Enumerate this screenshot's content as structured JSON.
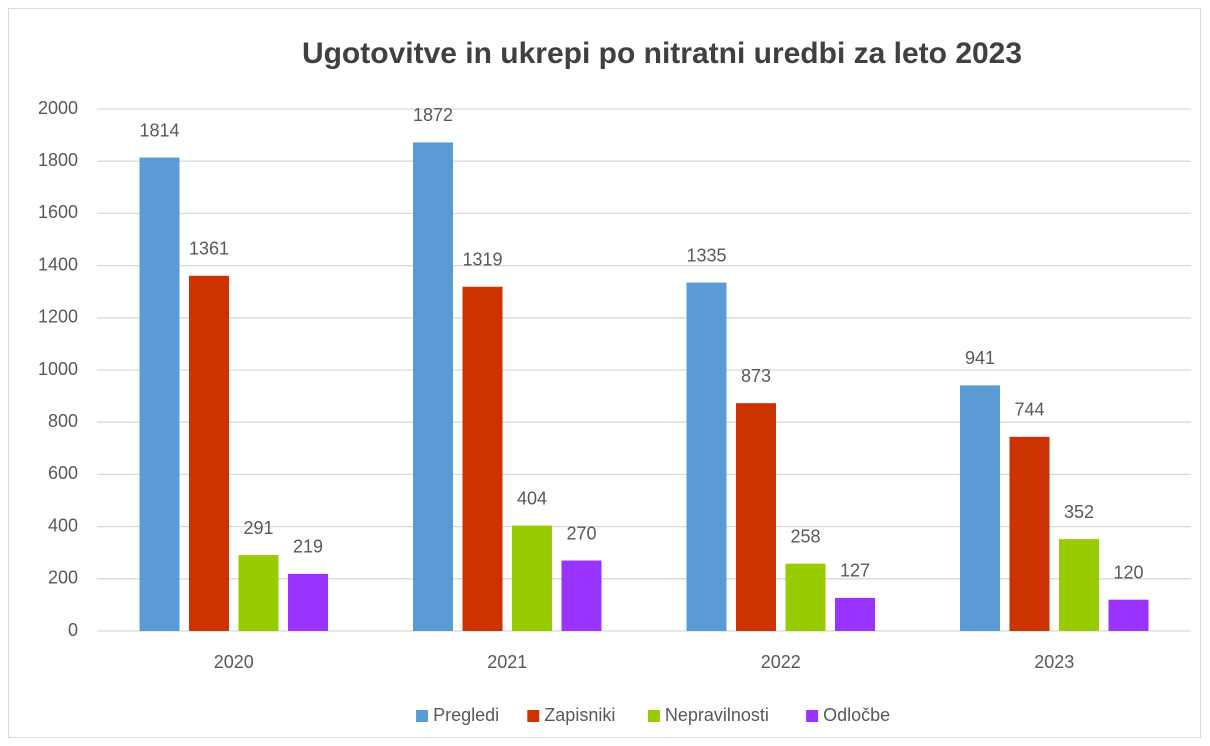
{
  "chart_data": {
    "type": "bar",
    "title": "Ugotovitve in ukrepi po nitratni uredbi za leto 2023",
    "categories": [
      "2020",
      "2021",
      "2022",
      "2023"
    ],
    "series": [
      {
        "name": "Pregledi",
        "color": "#5b9bd5",
        "values": [
          1814,
          1872,
          1335,
          941
        ]
      },
      {
        "name": "Zapisniki",
        "color": "#cc3300",
        "values": [
          1361,
          1319,
          873,
          744
        ]
      },
      {
        "name": "Nepravilnosti",
        "color": "#99cc00",
        "values": [
          291,
          404,
          258,
          352
        ]
      },
      {
        "name": "Odločbe",
        "color": "#9933ff",
        "values": [
          219,
          270,
          127,
          120
        ]
      }
    ],
    "ylim": [
      0,
      2000
    ],
    "yticks": [
      0,
      200,
      400,
      600,
      800,
      1000,
      1200,
      1400,
      1600,
      1800,
      2000
    ],
    "grid": true,
    "legend": "bottom"
  }
}
